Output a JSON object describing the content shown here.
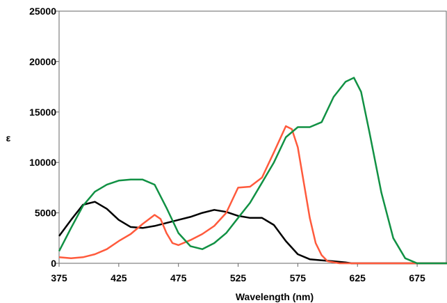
{
  "chart_data": {
    "type": "line",
    "xlabel": "Wavelength (nm)",
    "ylabel": "ε",
    "xlim": [
      375,
      700
    ],
    "ylim": [
      0,
      25000
    ],
    "x_ticks": [
      375,
      425,
      475,
      525,
      575,
      625,
      675
    ],
    "y_ticks": [
      0,
      5000,
      10000,
      15000,
      20000,
      25000
    ],
    "grid": false,
    "legend": "none",
    "series": [
      {
        "color": "#000000",
        "points": [
          [
            375,
            2700
          ],
          [
            385,
            4300
          ],
          [
            395,
            5800
          ],
          [
            405,
            6100
          ],
          [
            415,
            5400
          ],
          [
            425,
            4300
          ],
          [
            435,
            3600
          ],
          [
            445,
            3500
          ],
          [
            455,
            3700
          ],
          [
            465,
            4000
          ],
          [
            475,
            4300
          ],
          [
            485,
            4600
          ],
          [
            495,
            5000
          ],
          [
            505,
            5300
          ],
          [
            515,
            5100
          ],
          [
            525,
            4700
          ],
          [
            535,
            4500
          ],
          [
            545,
            4500
          ],
          [
            555,
            3800
          ],
          [
            565,
            2200
          ],
          [
            575,
            900
          ],
          [
            585,
            400
          ],
          [
            595,
            300
          ],
          [
            605,
            200
          ],
          [
            615,
            80
          ],
          [
            620,
            0
          ],
          [
            700,
            0
          ]
        ]
      },
      {
        "color": "#ff5a3c",
        "points": [
          [
            375,
            600
          ],
          [
            385,
            500
          ],
          [
            395,
            600
          ],
          [
            405,
            900
          ],
          [
            415,
            1400
          ],
          [
            425,
            2200
          ],
          [
            435,
            2900
          ],
          [
            445,
            3900
          ],
          [
            455,
            4800
          ],
          [
            460,
            4400
          ],
          [
            465,
            3000
          ],
          [
            470,
            2000
          ],
          [
            475,
            1800
          ],
          [
            485,
            2300
          ],
          [
            495,
            2900
          ],
          [
            505,
            3700
          ],
          [
            515,
            5000
          ],
          [
            525,
            7500
          ],
          [
            535,
            7600
          ],
          [
            545,
            8500
          ],
          [
            555,
            11000
          ],
          [
            565,
            13600
          ],
          [
            570,
            13300
          ],
          [
            575,
            11500
          ],
          [
            580,
            8000
          ],
          [
            585,
            4500
          ],
          [
            590,
            2000
          ],
          [
            595,
            800
          ],
          [
            600,
            200
          ],
          [
            610,
            0
          ],
          [
            700,
            0
          ]
        ]
      },
      {
        "color": "#119144",
        "points": [
          [
            375,
            1200
          ],
          [
            385,
            3500
          ],
          [
            395,
            5700
          ],
          [
            405,
            7100
          ],
          [
            415,
            7800
          ],
          [
            425,
            8200
          ],
          [
            435,
            8300
          ],
          [
            445,
            8300
          ],
          [
            455,
            7800
          ],
          [
            465,
            5500
          ],
          [
            475,
            3000
          ],
          [
            485,
            1700
          ],
          [
            495,
            1400
          ],
          [
            505,
            2000
          ],
          [
            515,
            3000
          ],
          [
            525,
            4500
          ],
          [
            535,
            6000
          ],
          [
            545,
            8000
          ],
          [
            555,
            10000
          ],
          [
            565,
            12500
          ],
          [
            575,
            13500
          ],
          [
            585,
            13500
          ],
          [
            595,
            14000
          ],
          [
            605,
            16500
          ],
          [
            615,
            18000
          ],
          [
            622,
            18400
          ],
          [
            628,
            17000
          ],
          [
            635,
            13000
          ],
          [
            645,
            7000
          ],
          [
            655,
            2500
          ],
          [
            665,
            500
          ],
          [
            675,
            0
          ],
          [
            700,
            0
          ]
        ]
      }
    ]
  }
}
